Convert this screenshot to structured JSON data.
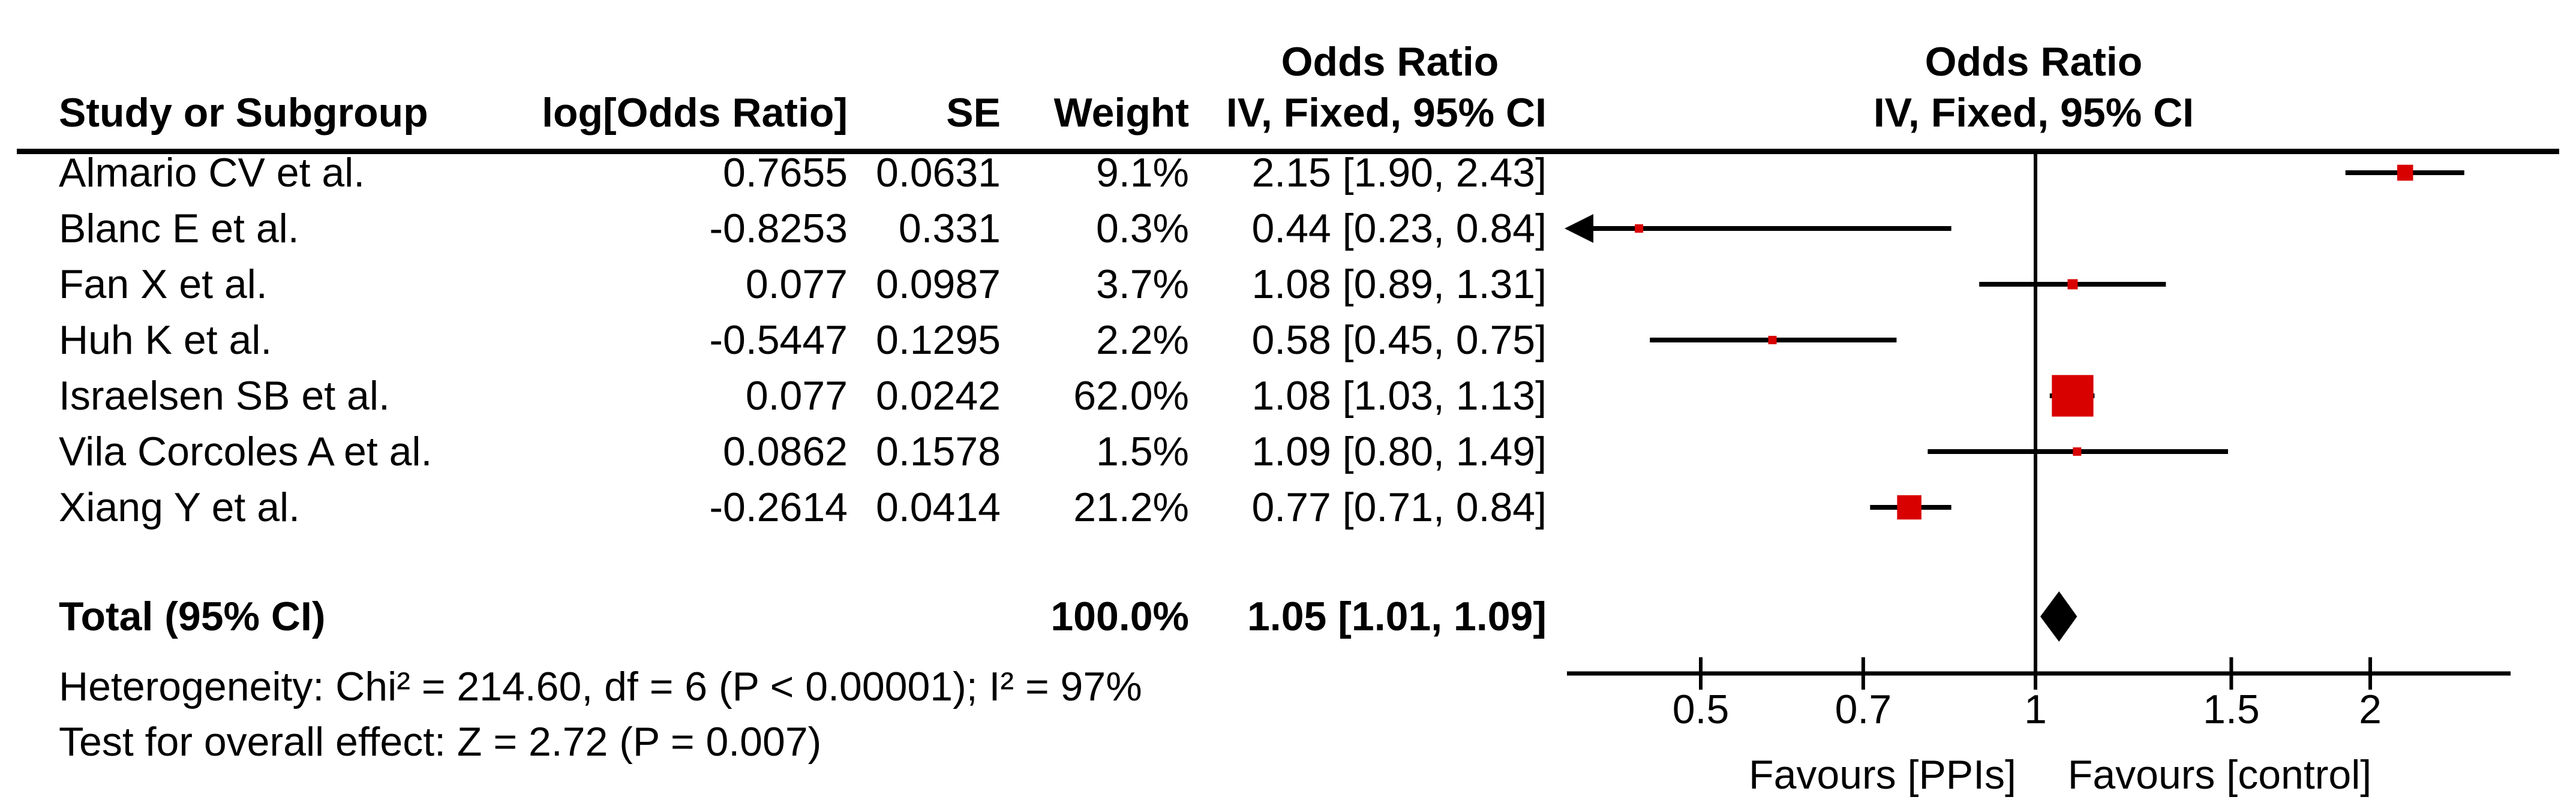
{
  "colors": {
    "marker_red": "#d90000",
    "line_black": "#000000",
    "background": "#ffffff"
  },
  "header": {
    "or_title_left": "Odds Ratio",
    "or_title_right": "Odds Ratio",
    "col_study": "Study or Subgroup",
    "col_log_or": "log[Odds Ratio]",
    "col_se": "SE",
    "col_weight": "Weight",
    "col_ci": "IV, Fixed, 95% CI",
    "col_ci_plot": "IV, Fixed, 95% CI"
  },
  "chart_data": {
    "type": "forest",
    "x_scale": "log",
    "axis_ticks": [
      "0.5",
      "0.7",
      "1",
      "1.5",
      "2"
    ],
    "axis_tick_values": [
      0.5,
      0.7,
      1,
      1.5,
      2
    ],
    "x_range": [
      0.38,
      2.67
    ],
    "vline_at": 1,
    "favours_left": "Favours [PPIs]",
    "favours_right": "Favours [control]",
    "studies": [
      {
        "name": "Almario CV et al.",
        "log_or": "0.7655",
        "se": "0.0631",
        "weight": "9.1%",
        "weight_pct": 9.1,
        "ci_text": "2.15 [1.90, 2.43]",
        "or": 2.15,
        "lo": 1.9,
        "hi": 2.43
      },
      {
        "name": "Blanc E et al.",
        "log_or": "-0.8253",
        "se": "0.331",
        "weight": "0.3%",
        "weight_pct": 0.3,
        "ci_text": "0.44 [0.23, 0.84]",
        "or": 0.44,
        "lo": 0.23,
        "hi": 0.84
      },
      {
        "name": "Fan X et al.",
        "log_or": "0.077",
        "se": "0.0987",
        "weight": "3.7%",
        "weight_pct": 3.7,
        "ci_text": "1.08 [0.89, 1.31]",
        "or": 1.08,
        "lo": 0.89,
        "hi": 1.31
      },
      {
        "name": "Huh K et al.",
        "log_or": "-0.5447",
        "se": "0.1295",
        "weight": "2.2%",
        "weight_pct": 2.2,
        "ci_text": "0.58 [0.45, 0.75]",
        "or": 0.58,
        "lo": 0.45,
        "hi": 0.75
      },
      {
        "name": "Israelsen SB et al.",
        "log_or": "0.077",
        "se": "0.0242",
        "weight": "62.0%",
        "weight_pct": 62.0,
        "ci_text": "1.08 [1.03, 1.13]",
        "or": 1.08,
        "lo": 1.03,
        "hi": 1.13
      },
      {
        "name": "Vila Corcoles A et al.",
        "log_or": "0.0862",
        "se": "0.1578",
        "weight": "1.5%",
        "weight_pct": 1.5,
        "ci_text": "1.09 [0.80, 1.49]",
        "or": 1.09,
        "lo": 0.8,
        "hi": 1.49
      },
      {
        "name": "Xiang Y et al.",
        "log_or": "-0.2614",
        "se": "0.0414",
        "weight": "21.2%",
        "weight_pct": 21.2,
        "ci_text": "0.77 [0.71, 0.84]",
        "or": 0.77,
        "lo": 0.71,
        "hi": 0.84
      }
    ],
    "total": {
      "label": "Total (95% CI)",
      "weight": "100.0%",
      "ci_text": "1.05 [1.01, 1.09]",
      "or": 1.05,
      "lo": 1.01,
      "hi": 1.09
    },
    "heterogeneity": "Heterogeneity: Chi² = 214.60, df = 6 (P < 0.00001); I² = 97%",
    "overall_effect": "Test for overall effect: Z = 2.72 (P = 0.007)"
  }
}
